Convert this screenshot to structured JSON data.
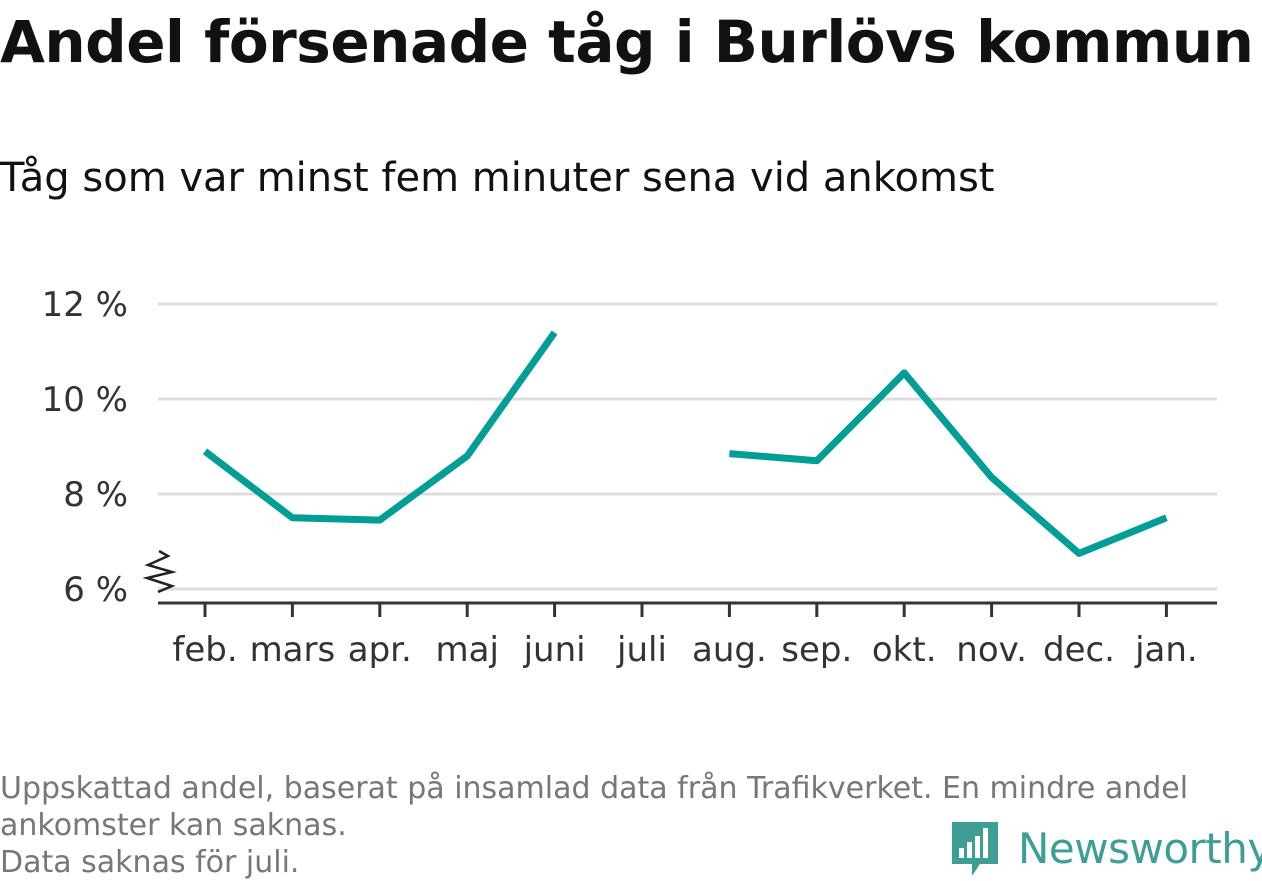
{
  "chart_data": {
    "type": "line",
    "title": "Andel försenade tåg i Burlövs kommun",
    "subtitle": "Tåg som var minst fem minuter sena vid ankomst",
    "categories": [
      "feb.",
      "mars",
      "apr.",
      "maj",
      "juni",
      "juli",
      "aug.",
      "sep.",
      "okt.",
      "nov.",
      "dec.",
      "jan."
    ],
    "series": [
      {
        "values": [
          8.9,
          7.5,
          7.45,
          8.8,
          11.4,
          null,
          8.85,
          8.7,
          10.55,
          8.35,
          6.75,
          7.5
        ]
      }
    ],
    "yticks": [
      6,
      8,
      10,
      12
    ],
    "ytick_labels": [
      "6 %",
      "8 %",
      "10 %",
      "12 %"
    ],
    "ylim": [
      5.7,
      12.3
    ],
    "y_axis_break": true,
    "grid": true,
    "line_color": "#009e96",
    "grid_color": "#dddddd",
    "axis_color": "#333333"
  },
  "footnote": {
    "line1": "Uppskattad andel, baserat på insamlad data från Trafikverket. En mindre andel",
    "line2": "ankomster kan saknas.",
    "line3": "Data saknas för juli."
  },
  "logo": {
    "text": "Newsworthy",
    "icon": "newsworthy-chart-icon",
    "color": "#3e9e95"
  }
}
